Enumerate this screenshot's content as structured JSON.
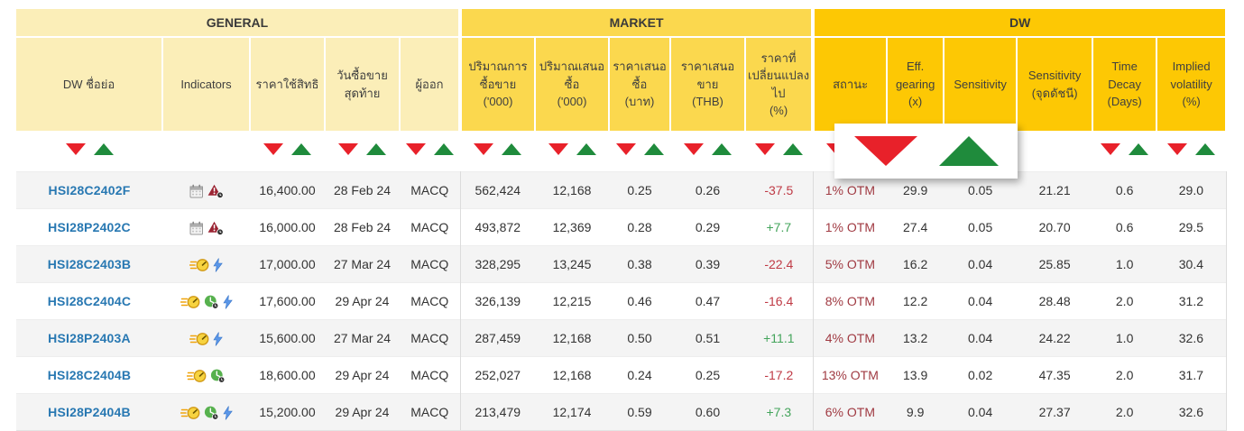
{
  "colors": {
    "general_bg": "#fbeeb8",
    "market_bg": "#fbd84e",
    "dw_bg": "#fdc804",
    "ticker_blue": "#2878b2",
    "status_red": "#a03a42",
    "change_neg": "#bf3a45",
    "change_pos": "#43a45b",
    "arrow_red": "#e8212a",
    "arrow_green": "#1f8b3c"
  },
  "groups": {
    "general": "GENERAL",
    "market": "MARKET",
    "dw": "DW"
  },
  "columns": {
    "symbol": "DW ชื่อย่อ",
    "indicators": "Indicators",
    "strike": "ราคาใช้สิทธิ",
    "last_trading": "วันซื้อขาย\nสุดท้าย",
    "issuer": "ผู้ออก",
    "volume": "ปริมาณการ\nซื้อขาย\n('000)",
    "bid_volume": "ปริมาณเสนอ\nซื้อ\n('000)",
    "bid_price": "ราคาเสนอ\nซื้อ\n(บาท)",
    "ask_price": "ราคาเสนอ\nขาย\n(THB)",
    "change": "ราคาที่\nเปลี่ยนแปลง\nไป\n(%)",
    "status": "สถานะ",
    "eff_gearing": "Eff.\ngearing\n(x)",
    "sensitivity": "Sensitivity",
    "sensitivity_index": "Sensitivity\n(จุดดัชนี)",
    "time_decay": "Time\nDecay\n(Days)",
    "implied_volatility": "Implied\nvolatility\n(%)"
  },
  "rows": [
    {
      "symbol": "HSI28C2402F",
      "indicators": [
        "calendar-icon",
        "warning-triangle-icon"
      ],
      "strike": "16,400.00",
      "last_trading": "28 Feb 24",
      "issuer": "MACQ",
      "volume": "562,424",
      "bid_volume": "12,168",
      "bid_price": "0.25",
      "ask_price": "0.26",
      "change": "-37.5",
      "change_dir": "down",
      "status": "1% OTM",
      "eff_gearing": "29.9",
      "sensitivity": "0.05",
      "sensitivity_index": "21.21",
      "time_decay": "0.6",
      "implied_volatility": "29.0"
    },
    {
      "symbol": "HSI28P2402C",
      "indicators": [
        "calendar-icon",
        "warning-triangle-icon"
      ],
      "strike": "16,000.00",
      "last_trading": "28 Feb 24",
      "issuer": "MACQ",
      "volume": "493,872",
      "bid_volume": "12,369",
      "bid_price": "0.28",
      "ask_price": "0.29",
      "change": "+7.7",
      "change_dir": "up",
      "status": "1% OTM",
      "eff_gearing": "27.4",
      "sensitivity": "0.05",
      "sensitivity_index": "20.70",
      "time_decay": "0.6",
      "implied_volatility": "29.5"
    },
    {
      "symbol": "HSI28C2403B",
      "indicators": [
        "speed-clock-icon",
        "lightning-icon"
      ],
      "strike": "17,000.00",
      "last_trading": "27 Mar 24",
      "issuer": "MACQ",
      "volume": "328,295",
      "bid_volume": "13,245",
      "bid_price": "0.38",
      "ask_price": "0.39",
      "change": "-22.4",
      "change_dir": "down",
      "status": "5% OTM",
      "eff_gearing": "16.2",
      "sensitivity": "0.04",
      "sensitivity_index": "25.85",
      "time_decay": "1.0",
      "implied_volatility": "30.4"
    },
    {
      "symbol": "HSI28C2404C",
      "indicators": [
        "speed-clock-icon",
        "green-clock-icon",
        "lightning-icon"
      ],
      "strike": "17,600.00",
      "last_trading": "29 Apr 24",
      "issuer": "MACQ",
      "volume": "326,139",
      "bid_volume": "12,215",
      "bid_price": "0.46",
      "ask_price": "0.47",
      "change": "-16.4",
      "change_dir": "down",
      "status": "8% OTM",
      "eff_gearing": "12.2",
      "sensitivity": "0.04",
      "sensitivity_index": "28.48",
      "time_decay": "2.0",
      "implied_volatility": "31.2"
    },
    {
      "symbol": "HSI28P2403A",
      "indicators": [
        "speed-clock-icon",
        "lightning-icon"
      ],
      "strike": "15,600.00",
      "last_trading": "27 Mar 24",
      "issuer": "MACQ",
      "volume": "287,459",
      "bid_volume": "12,168",
      "bid_price": "0.50",
      "ask_price": "0.51",
      "change": "+11.1",
      "change_dir": "up",
      "status": "4% OTM",
      "eff_gearing": "13.2",
      "sensitivity": "0.04",
      "sensitivity_index": "24.22",
      "time_decay": "1.0",
      "implied_volatility": "32.6"
    },
    {
      "symbol": "HSI28C2404B",
      "indicators": [
        "speed-clock-icon",
        "green-clock-icon"
      ],
      "strike": "18,600.00",
      "last_trading": "29 Apr 24",
      "issuer": "MACQ",
      "volume": "252,027",
      "bid_volume": "12,168",
      "bid_price": "0.24",
      "ask_price": "0.25",
      "change": "-17.2",
      "change_dir": "down",
      "status": "13% OTM",
      "eff_gearing": "13.9",
      "sensitivity": "0.02",
      "sensitivity_index": "47.35",
      "time_decay": "2.0",
      "implied_volatility": "31.7"
    },
    {
      "symbol": "HSI28P2404B",
      "indicators": [
        "speed-clock-icon",
        "green-clock-icon",
        "lightning-icon"
      ],
      "strike": "15,200.00",
      "last_trading": "29 Apr 24",
      "issuer": "MACQ",
      "volume": "213,479",
      "bid_volume": "12,174",
      "bid_price": "0.59",
      "ask_price": "0.60",
      "change": "+7.3",
      "change_dir": "up",
      "status": "6% OTM",
      "eff_gearing": "9.9",
      "sensitivity": "0.04",
      "sensitivity_index": "27.37",
      "time_decay": "2.0",
      "implied_volatility": "32.6"
    }
  ]
}
